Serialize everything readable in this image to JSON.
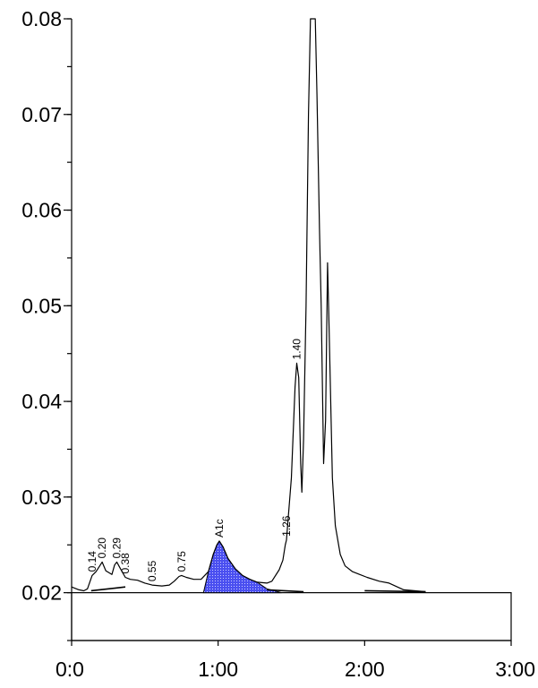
{
  "chart_data": {
    "type": "line",
    "title": "",
    "xlabel": "",
    "ylabel": "",
    "xlim": [
      0,
      180
    ],
    "ylim": [
      0.015,
      0.08
    ],
    "grid": false,
    "baseline": 0.02,
    "x_ticks": [
      {
        "value": 0,
        "label": "0:0"
      },
      {
        "value": 60,
        "label": "1:00"
      },
      {
        "value": 120,
        "label": "2:00"
      },
      {
        "value": 180,
        "label": "3:00"
      }
    ],
    "y_ticks": [
      {
        "value": 0.02,
        "label": "0.02"
      },
      {
        "value": 0.03,
        "label": "0.03"
      },
      {
        "value": 0.04,
        "label": "0.04"
      },
      {
        "value": 0.05,
        "label": "0.05"
      },
      {
        "value": 0.06,
        "label": "0.06"
      },
      {
        "value": 0.07,
        "label": "0.07"
      },
      {
        "value": 0.08,
        "label": "0.08"
      }
    ],
    "series": [
      {
        "values": [
          [
            0,
            0.0206
          ],
          [
            3,
            0.0203
          ],
          [
            5,
            0.0202
          ],
          [
            6.5,
            0.0204
          ],
          [
            8.4,
            0.0218
          ],
          [
            10,
            0.0222
          ],
          [
            11.5,
            0.0228
          ],
          [
            12.5,
            0.0232
          ],
          [
            14,
            0.0223
          ],
          [
            16.5,
            0.0219
          ],
          [
            17.6,
            0.0229
          ],
          [
            18.5,
            0.0232
          ],
          [
            20,
            0.0225
          ],
          [
            22,
            0.0216
          ],
          [
            24,
            0.0214
          ],
          [
            27,
            0.0213
          ],
          [
            30,
            0.021
          ],
          [
            33,
            0.0208
          ],
          [
            37,
            0.0207
          ],
          [
            40,
            0.0208
          ],
          [
            42,
            0.0212
          ],
          [
            44,
            0.0217
          ],
          [
            45,
            0.0218
          ],
          [
            47,
            0.0216
          ],
          [
            50,
            0.0214
          ],
          [
            53,
            0.0214
          ],
          [
            56,
            0.0222
          ],
          [
            58,
            0.024
          ],
          [
            59.5,
            0.025
          ],
          [
            60.5,
            0.0254
          ],
          [
            62,
            0.0248
          ],
          [
            64,
            0.0236
          ],
          [
            67,
            0.0225
          ],
          [
            70,
            0.0218
          ],
          [
            73,
            0.0214
          ],
          [
            76,
            0.0211
          ],
          [
            80,
            0.021
          ],
          [
            82,
            0.0212
          ],
          [
            85,
            0.0224
          ],
          [
            86.5,
            0.0234
          ],
          [
            87.5,
            0.025
          ],
          [
            88,
            0.0255
          ],
          [
            90,
            0.032
          ],
          [
            91.5,
            0.0415
          ],
          [
            92.2,
            0.044
          ],
          [
            93,
            0.0425
          ],
          [
            93.8,
            0.0335
          ],
          [
            94.3,
            0.0305
          ],
          [
            95,
            0.036
          ],
          [
            96,
            0.05
          ],
          [
            97,
            0.07
          ],
          [
            97.8,
            0.08
          ],
          [
            99.8,
            0.08
          ],
          [
            100.5,
            0.072
          ],
          [
            101.5,
            0.058
          ],
          [
            102.2,
            0.05
          ],
          [
            103.2,
            0.0335
          ],
          [
            104,
            0.038
          ],
          [
            104.8,
            0.0545
          ],
          [
            105.5,
            0.047
          ],
          [
            106.8,
            0.032
          ],
          [
            108,
            0.027
          ],
          [
            110,
            0.024
          ],
          [
            112,
            0.0228
          ],
          [
            115,
            0.0222
          ],
          [
            118,
            0.0219
          ],
          [
            121,
            0.0216
          ],
          [
            126,
            0.0212
          ],
          [
            130,
            0.021
          ],
          [
            136,
            0.0203
          ],
          [
            145,
            0.0201
          ]
        ]
      }
    ],
    "shaded_peak": {
      "name": "A1c",
      "values": [
        [
          54,
          0.02
        ],
        [
          56,
          0.0222
        ],
        [
          58,
          0.024
        ],
        [
          59.5,
          0.025
        ],
        [
          60.5,
          0.0254
        ],
        [
          62,
          0.0248
        ],
        [
          64,
          0.0236
        ],
        [
          67,
          0.0225
        ],
        [
          70,
          0.0218
        ],
        [
          73,
          0.0214
        ],
        [
          76,
          0.0211
        ],
        [
          80,
          0.0204
        ],
        [
          86,
          0.02
        ]
      ],
      "color": "#4a4ff0"
    },
    "integration_lines": [
      {
        "x0": 8,
        "y0": 0.0202,
        "x1": 22,
        "y1": 0.0206
      },
      {
        "x0": 80,
        "y0": 0.0203,
        "x1": 95,
        "y1": 0.0201
      },
      {
        "x0": 120,
        "y0": 0.0202,
        "x1": 145,
        "y1": 0.0201
      }
    ],
    "peak_labels": [
      {
        "text": "0.14",
        "x": 8.4,
        "y": 0.0218
      },
      {
        "text": "0.20",
        "x": 12.5,
        "y": 0.0232
      },
      {
        "text": "0.29",
        "x": 18.5,
        "y": 0.0232
      },
      {
        "text": "0.38",
        "x": 22,
        "y": 0.0216
      },
      {
        "text": "0.55",
        "x": 33,
        "y": 0.0208
      },
      {
        "text": "0.75",
        "x": 45,
        "y": 0.0218
      },
      {
        "text": "A1c",
        "x": 60.5,
        "y": 0.0254
      },
      {
        "text": "1.26",
        "x": 88,
        "y": 0.0255
      },
      {
        "text": "1.40",
        "x": 92.2,
        "y": 0.044
      }
    ],
    "colors": {
      "line": "#000000",
      "fill": "#4a4ff0",
      "axis": "#000000"
    }
  }
}
